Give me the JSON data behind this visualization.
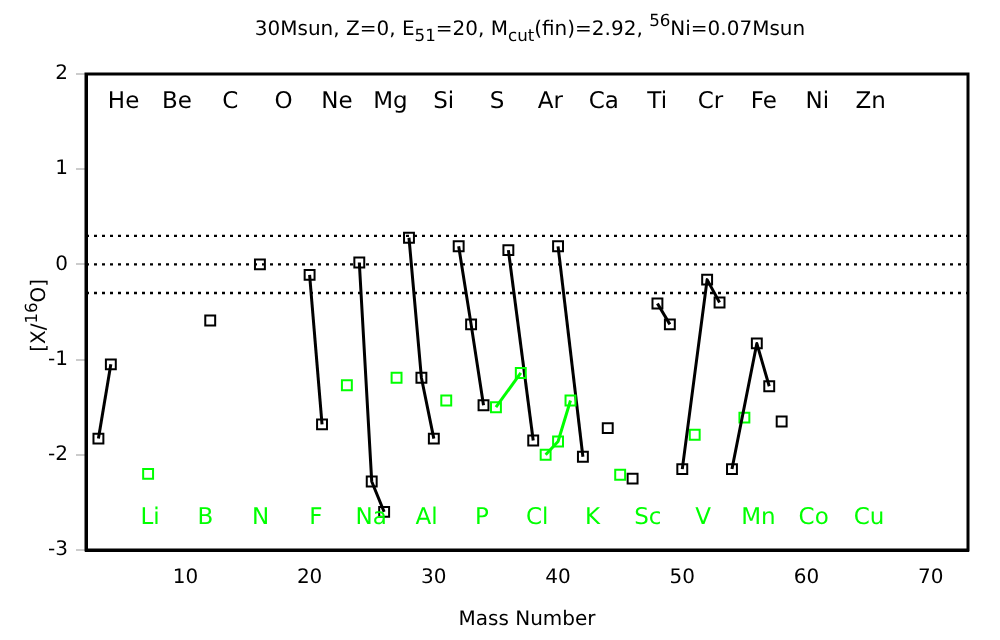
{
  "chart_data": {
    "type": "line",
    "title": "30Msun, Z=0, E$_{51}$=20, M$_{cut}$(fin)=2.92, $^{56}$Ni=0.07Msun",
    "xlabel": "Mass Number",
    "ylabel": "[X/$^{16}$O]",
    "xlim": [
      2,
      73
    ],
    "xticks": [
      10,
      20,
      30,
      40,
      50,
      60,
      70
    ],
    "ylim": [
      -3,
      2
    ],
    "yticks": [
      -3,
      -2,
      -1,
      0,
      1,
      2
    ],
    "grid": false,
    "legend": false,
    "marker": "square",
    "line_style": "solid",
    "series": [
      {
        "color": "#000000",
        "x": [
          3,
          4
        ],
        "values": [
          -1.83,
          -1.05
        ]
      },
      {
        "color": "#00ff00",
        "x": [
          7
        ],
        "values": [
          -2.2
        ]
      },
      {
        "color": "#000000",
        "x": [
          12
        ],
        "values": [
          -0.59
        ]
      },
      {
        "color": "#000000",
        "x": [
          16
        ],
        "values": [
          0
        ]
      },
      {
        "color": "#000000",
        "x": [
          20,
          21
        ],
        "values": [
          -0.11,
          -1.68
        ]
      },
      {
        "color": "#00ff00",
        "x": [
          23
        ],
        "values": [
          -1.27
        ]
      },
      {
        "color": "#000000",
        "x": [
          24,
          25,
          26
        ],
        "values": [
          0.02,
          -2.28,
          -2.6
        ]
      },
      {
        "color": "#00ff00",
        "x": [
          27
        ],
        "values": [
          -1.19
        ]
      },
      {
        "color": "#000000",
        "x": [
          28,
          29,
          30
        ],
        "values": [
          0.28,
          -1.19,
          -1.83
        ]
      },
      {
        "color": "#00ff00",
        "x": [
          31
        ],
        "values": [
          -1.43
        ]
      },
      {
        "color": "#000000",
        "x": [
          32,
          33,
          34
        ],
        "values": [
          0.19,
          -0.63,
          -1.48
        ]
      },
      {
        "color": "#00ff00",
        "x": [
          35,
          37
        ],
        "values": [
          -1.5,
          -1.14
        ]
      },
      {
        "color": "#000000",
        "x": [
          36,
          38
        ],
        "values": [
          0.15,
          -1.85
        ]
      },
      {
        "color": "#00ff00",
        "x": [
          39,
          40,
          41
        ],
        "values": [
          -2.0,
          -1.86,
          -1.43
        ]
      },
      {
        "color": "#000000",
        "x": [
          40,
          42
        ],
        "values": [
          0.19,
          -2.02
        ]
      },
      {
        "color": "#000000",
        "x": [
          44
        ],
        "values": [
          -1.72
        ]
      },
      {
        "color": "#00ff00",
        "x": [
          45
        ],
        "values": [
          -2.21
        ]
      },
      {
        "color": "#000000",
        "x": [
          46
        ],
        "values": [
          -2.25
        ]
      },
      {
        "color": "#000000",
        "x": [
          48,
          49
        ],
        "values": [
          -0.41,
          -0.63
        ]
      },
      {
        "color": "#000000",
        "x": [
          50,
          52,
          53
        ],
        "values": [
          -2.15,
          -0.16,
          -0.4
        ]
      },
      {
        "color": "#00ff00",
        "x": [
          51
        ],
        "values": [
          -1.79
        ]
      },
      {
        "color": "#000000",
        "x": [
          54,
          56,
          57
        ],
        "values": [
          -2.15,
          -0.83,
          -1.28
        ]
      },
      {
        "color": "#00ff00",
        "x": [
          55
        ],
        "values": [
          -1.61
        ]
      },
      {
        "color": "#000000",
        "x": [
          58
        ],
        "values": [
          -1.65
        ]
      }
    ],
    "ref_lines": [
      {
        "axis": "y",
        "value": 0.3,
        "line_style": "dotted"
      },
      {
        "axis": "y",
        "value": 0,
        "line_style": "dotted"
      },
      {
        "axis": "y",
        "value": -0.3,
        "line_style": "dotted"
      }
    ],
    "annotations": [
      "He Be C O Ne Mg Si S Ar Ca Ti Cr Fe Ni Zn",
      "Li B N F Na Al P Cl K Sc V Mn Co Cu"
    ]
  }
}
